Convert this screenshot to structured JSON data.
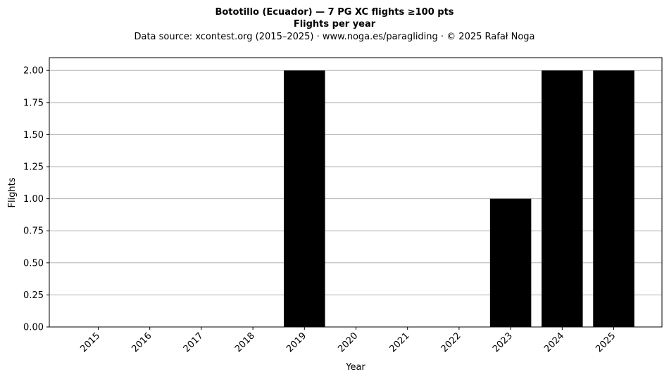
{
  "chart_data": {
    "type": "bar",
    "title": "Bototillo (Ecuador)  —  7 PG XC flights ≥100 pts",
    "subtitle": "Flights per year",
    "source": "Data source: xcontest.org (2015–2025)  ·  www.noga.es/paragliding  ·  © 2025 Rafał Noga",
    "xlabel": "Year",
    "ylabel": "Flights",
    "categories": [
      "2015",
      "2016",
      "2017",
      "2018",
      "2019",
      "2020",
      "2021",
      "2022",
      "2023",
      "2024",
      "2025"
    ],
    "values": [
      0,
      0,
      0,
      0,
      2,
      0,
      0,
      0,
      1,
      2,
      2
    ],
    "ylim": [
      0,
      2.1
    ],
    "yticks": [
      "0.00",
      "0.25",
      "0.50",
      "0.75",
      "1.00",
      "1.25",
      "1.50",
      "1.75",
      "2.00"
    ],
    "grid": "y",
    "bar_color": "#000000",
    "grid_color": "#b0b0b0"
  }
}
